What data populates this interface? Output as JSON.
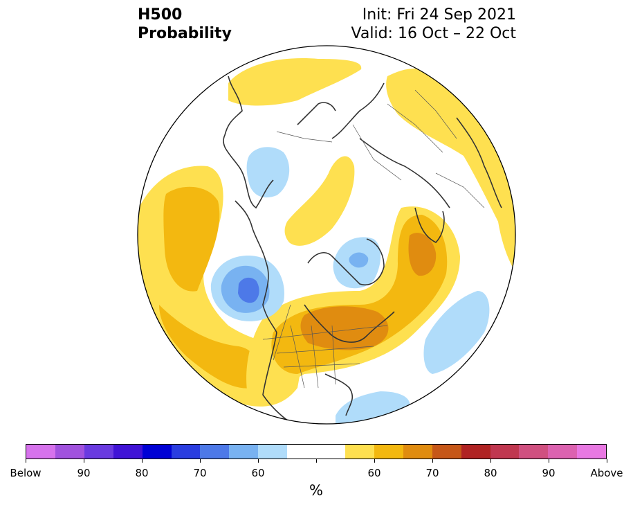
{
  "title": {
    "left_line1": "H500",
    "left_line2": "Probability",
    "right_line1": "Init: Fri 24 Sep 2021",
    "right_line2": "Valid: 16 Oct – 22 Oct"
  },
  "colorbar": {
    "colors": [
      "#d672ec",
      "#a152de",
      "#6a3ae0",
      "#4013d6",
      "#0001d5",
      "#2a3de0",
      "#4d79e8",
      "#78b2f1",
      "#b0dcfa",
      "#ffffff",
      "#ffffff",
      "#fee050",
      "#f3b810",
      "#e08c10",
      "#c65718",
      "#b02323",
      "#c03750",
      "#d05080",
      "#dc62b0",
      "#e878e2"
    ],
    "labels": [
      "Below",
      "90",
      "80",
      "70",
      "60",
      "",
      "60",
      "70",
      "80",
      "90",
      "Above"
    ],
    "unit": "%"
  },
  "map": {
    "palette": {
      "ocean": "#ffffff",
      "coast": "#333333",
      "border": "#444444"
    }
  }
}
